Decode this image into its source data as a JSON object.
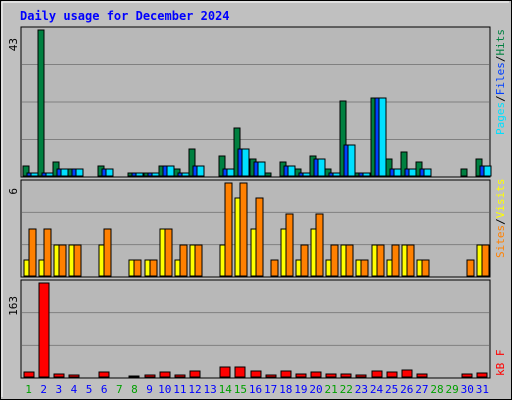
{
  "title": "Daily usage for December 2024",
  "colors": {
    "background": "#c0c0c0",
    "plot_bg": "#b8b8b8",
    "title": "#0000ff",
    "hits": "#008040",
    "files": "#0040ff",
    "pages": "#00e0ff",
    "visits": "#ffff00",
    "sites": "#ff8000",
    "kbytes": "#ff0000",
    "weekday_label": "#0000ff",
    "weekend_label": "#00a000"
  },
  "chart_data": [
    {
      "type": "bar",
      "panel": "top",
      "max_label": "43",
      "ylim": [
        0,
        43
      ],
      "categories": [
        "1",
        "2",
        "3",
        "4",
        "5",
        "6",
        "7",
        "8",
        "9",
        "10",
        "11",
        "12",
        "13",
        "14",
        "15",
        "16",
        "17",
        "18",
        "19",
        "20",
        "21",
        "22",
        "23",
        "24",
        "25",
        "26",
        "27",
        "28",
        "29",
        "30",
        "31"
      ],
      "legend": [
        "Pages",
        "/",
        "Files",
        "/",
        "Hits"
      ],
      "series": [
        {
          "name": "Hits",
          "values": [
            3,
            43,
            4,
            2,
            0,
            3,
            0,
            1,
            1,
            3,
            2,
            8,
            0,
            6,
            14,
            5,
            1,
            4,
            2,
            6,
            2,
            22,
            1,
            23,
            5,
            7,
            4,
            0,
            0,
            2,
            5
          ]
        },
        {
          "name": "Files",
          "values": [
            1,
            1,
            2,
            2,
            0,
            2,
            0,
            1,
            1,
            3,
            1,
            3,
            0,
            2,
            8,
            4,
            0,
            3,
            1,
            5,
            1,
            9,
            1,
            23,
            2,
            2,
            2,
            0,
            0,
            0,
            3
          ]
        },
        {
          "name": "Pages",
          "values": [
            1,
            1,
            2,
            2,
            0,
            2,
            0,
            1,
            1,
            3,
            1,
            3,
            0,
            2,
            8,
            4,
            0,
            3,
            1,
            5,
            1,
            9,
            1,
            23,
            2,
            2,
            2,
            0,
            0,
            0,
            3
          ]
        }
      ]
    },
    {
      "type": "bar",
      "panel": "middle",
      "max_label": "6",
      "ylim": [
        0,
        6
      ],
      "categories": [
        "1",
        "2",
        "3",
        "4",
        "5",
        "6",
        "7",
        "8",
        "9",
        "10",
        "11",
        "12",
        "13",
        "14",
        "15",
        "16",
        "17",
        "18",
        "19",
        "20",
        "21",
        "22",
        "23",
        "24",
        "25",
        "26",
        "27",
        "28",
        "29",
        "30",
        "31"
      ],
      "legend": [
        "Sites",
        "/",
        "Visits"
      ],
      "series": [
        {
          "name": "Visits",
          "values": [
            1,
            1,
            2,
            2,
            0,
            2,
            0,
            1,
            1,
            3,
            1,
            2,
            0,
            2,
            5,
            3,
            0,
            3,
            1,
            3,
            1,
            2,
            1,
            2,
            1,
            2,
            1,
            0,
            0,
            0,
            2
          ]
        },
        {
          "name": "Sites",
          "values": [
            3,
            3,
            2,
            2,
            0,
            3,
            0,
            1,
            1,
            3,
            2,
            2,
            0,
            6,
            6,
            5,
            1,
            4,
            2,
            4,
            2,
            2,
            1,
            2,
            2,
            2,
            1,
            0,
            0,
            1,
            2
          ]
        }
      ]
    },
    {
      "type": "bar",
      "panel": "bottom",
      "max_label": "163",
      "ylim": [
        0,
        163
      ],
      "categories": [
        "1",
        "2",
        "3",
        "4",
        "5",
        "6",
        "7",
        "8",
        "9",
        "10",
        "11",
        "12",
        "13",
        "14",
        "15",
        "16",
        "17",
        "18",
        "19",
        "20",
        "21",
        "22",
        "23",
        "24",
        "25",
        "26",
        "27",
        "28",
        "29",
        "30",
        "31"
      ],
      "legend": [
        "kB F"
      ],
      "series": [
        {
          "name": "kB F",
          "values": [
            8,
            163,
            6,
            4,
            0,
            8,
            0,
            2,
            4,
            9,
            4,
            10,
            0,
            18,
            18,
            11,
            3,
            10,
            5,
            9,
            5,
            6,
            3,
            11,
            8,
            13,
            6,
            0,
            0,
            6,
            7
          ]
        }
      ]
    }
  ],
  "x_axis": {
    "labels": [
      "1",
      "2",
      "3",
      "4",
      "5",
      "6",
      "7",
      "8",
      "9",
      "10",
      "11",
      "12",
      "13",
      "14",
      "15",
      "16",
      "17",
      "18",
      "19",
      "20",
      "21",
      "22",
      "23",
      "24",
      "25",
      "26",
      "27",
      "28",
      "29",
      "30",
      "31"
    ],
    "weekend_days": [
      "1",
      "7",
      "8",
      "14",
      "15",
      "21",
      "22",
      "28",
      "29"
    ]
  }
}
